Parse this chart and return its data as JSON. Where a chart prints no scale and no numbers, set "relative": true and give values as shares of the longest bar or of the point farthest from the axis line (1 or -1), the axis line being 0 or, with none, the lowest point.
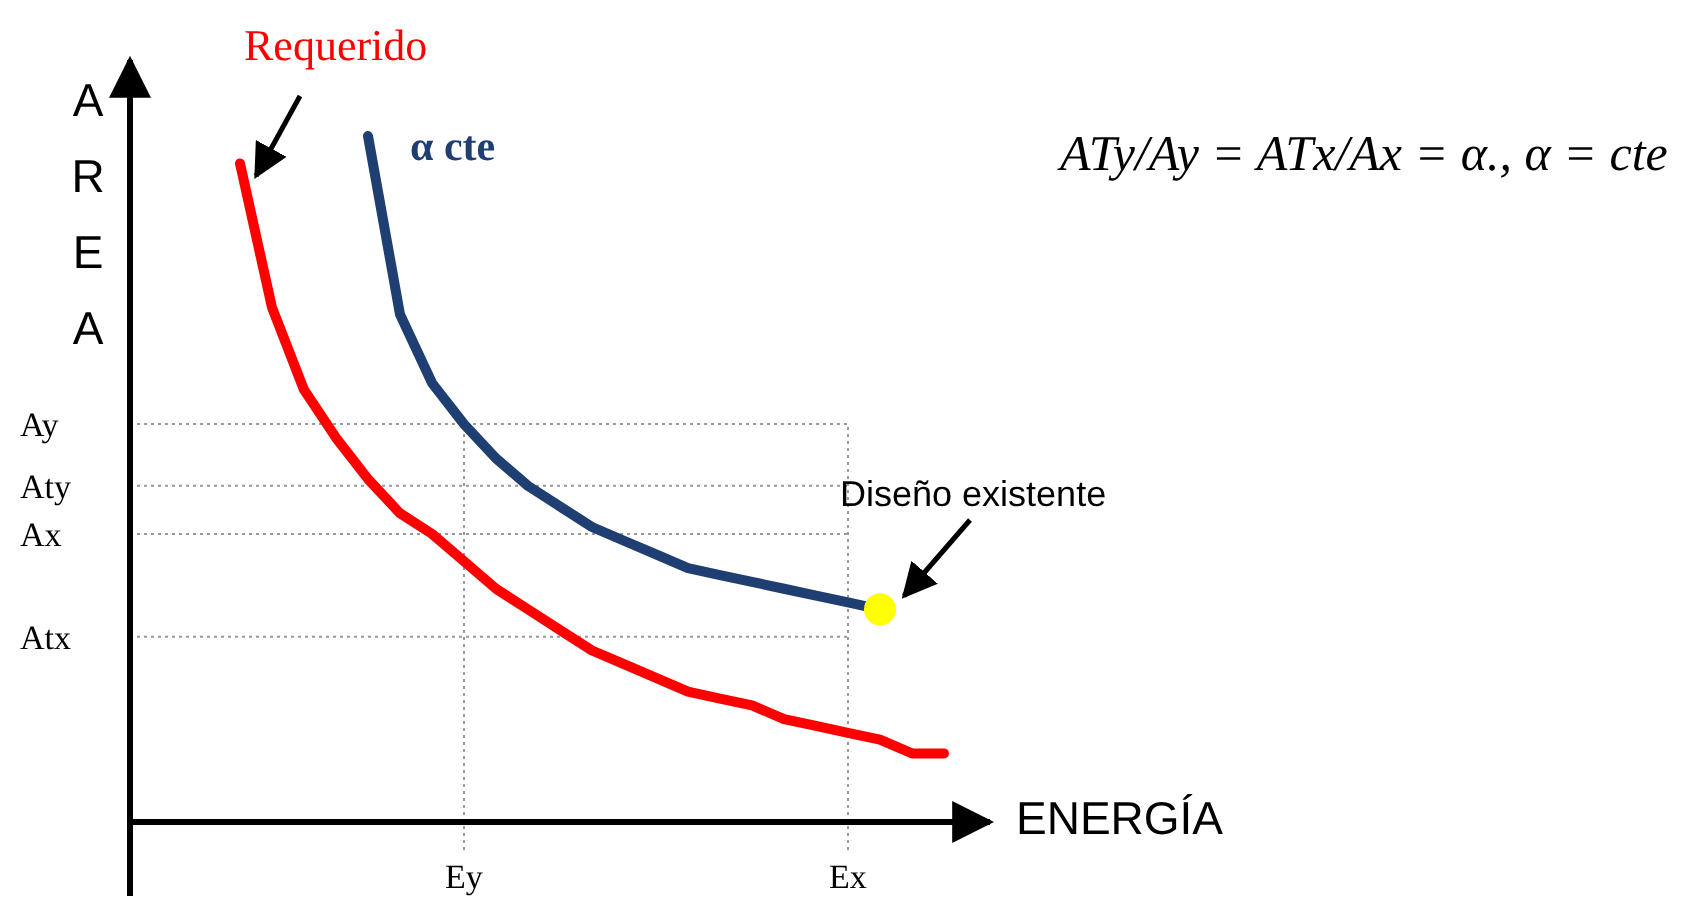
{
  "chart_data": {
    "type": "line",
    "xlabel": "ENERGÍA",
    "ylabel": "AREA",
    "relative": true,
    "categories": [
      null,
      null,
      null,
      null,
      null,
      null,
      null,
      "Ey",
      null,
      null,
      null,
      null,
      null,
      null,
      null,
      null,
      null,
      null,
      null,
      "Ex",
      null,
      null,
      null
    ],
    "ref_lines": [
      {
        "axis": "x",
        "value": "Ey",
        "line_style": "dotted"
      },
      {
        "axis": "x",
        "value": "Ex",
        "line_style": "dotted"
      },
      {
        "axis": "y",
        "value": 0.27,
        "label": "Atx",
        "line_style": "dotted"
      },
      {
        "axis": "y",
        "value": 0.42,
        "label": "Ax",
        "line_style": "dotted"
      },
      {
        "axis": "y",
        "value": 0.49,
        "label": "Aty",
        "line_style": "dotted"
      },
      {
        "axis": "y",
        "value": 0.58,
        "label": "Ay",
        "line_style": "dotted"
      }
    ],
    "legend": false,
    "line_style": "solid",
    "marker": "none",
    "series": [
      {
        "name": "Requerido",
        "color": "#ff0000",
        "values": [
          0.96,
          0.75,
          0.63,
          0.56,
          0.5,
          0.45,
          0.42,
          0.38,
          0.34,
          0.31,
          0.28,
          0.25,
          0.23,
          0.21,
          0.19,
          0.18,
          0.17,
          0.15,
          0.14,
          0.13,
          0.12,
          0.1,
          0.1
        ]
      },
      {
        "name": "α cte",
        "color": "#1f3f73",
        "values": [
          null,
          null,
          null,
          null,
          1,
          0.74,
          0.64,
          0.58,
          0.53,
          0.49,
          0.46,
          0.43,
          0.41,
          0.39,
          0.37,
          0.36,
          0.35,
          0.34,
          0.33,
          0.32,
          0.31,
          null,
          null
        ]
      },
      {
        "name": "Diseño existente",
        "type": "scatter",
        "marker": "circle",
        "color": "#ffff00",
        "values": [
          null,
          null,
          null,
          null,
          null,
          null,
          null,
          null,
          null,
          null,
          null,
          null,
          null,
          null,
          null,
          null,
          null,
          null,
          null,
          null,
          0.31,
          null,
          null
        ]
      }
    ],
    "annotations": [
      "ATy/Ay = ATx/Ax = α., α = cte"
    ]
  }
}
